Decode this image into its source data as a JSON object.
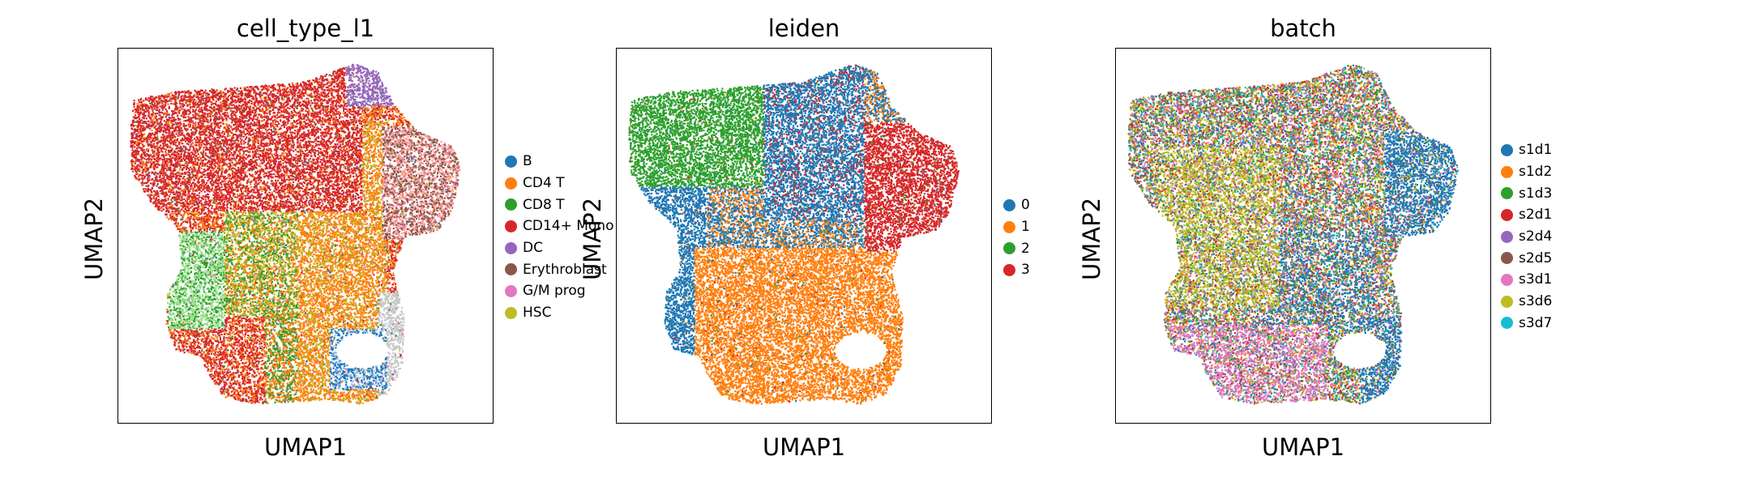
{
  "chart_data": [
    {
      "type": "scatter",
      "title": "cell_type_l1",
      "xlabel": "UMAP1",
      "ylabel": "UMAP2",
      "legend_placement": "right",
      "series": [
        {
          "name": "B",
          "color": "#1f77b4"
        },
        {
          "name": "CD4 T",
          "color": "#ff7f0e"
        },
        {
          "name": "CD8 T",
          "color": "#2ca02c"
        },
        {
          "name": "CD14+ Mono",
          "color": "#d62728"
        },
        {
          "name": "DC",
          "color": "#9467bd"
        },
        {
          "name": "Erythroblast",
          "color": "#8c564b"
        },
        {
          "name": "G/M prog",
          "color": "#e377c2"
        },
        {
          "name": "HSC",
          "color": "#bcbd22"
        }
      ],
      "extra_colors": [
        "#aec7e8",
        "#98df8a",
        "#ff9896",
        "#c7c7c7",
        "#dbdb8d"
      ]
    },
    {
      "type": "scatter",
      "title": "leiden",
      "xlabel": "UMAP1",
      "ylabel": "UMAP2",
      "legend_placement": "right",
      "series": [
        {
          "name": "0",
          "color": "#1f77b4"
        },
        {
          "name": "1",
          "color": "#ff7f0e"
        },
        {
          "name": "2",
          "color": "#2ca02c"
        },
        {
          "name": "3",
          "color": "#d62728"
        }
      ]
    },
    {
      "type": "scatter",
      "title": "batch",
      "xlabel": "UMAP1",
      "ylabel": "UMAP2",
      "legend_placement": "right",
      "series": [
        {
          "name": "s1d1",
          "color": "#1f77b4"
        },
        {
          "name": "s1d2",
          "color": "#ff7f0e"
        },
        {
          "name": "s1d3",
          "color": "#2ca02c"
        },
        {
          "name": "s2d1",
          "color": "#d62728"
        },
        {
          "name": "s2d4",
          "color": "#9467bd"
        },
        {
          "name": "s2d5",
          "color": "#8c564b"
        },
        {
          "name": "s3d1",
          "color": "#e377c2"
        },
        {
          "name": "s3d6",
          "color": "#bcbd22"
        },
        {
          "name": "s3d7",
          "color": "#17becf"
        }
      ]
    }
  ]
}
